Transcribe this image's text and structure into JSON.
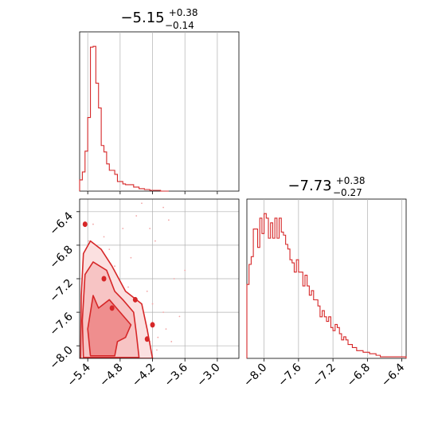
{
  "chart_data": [
    {
      "type": "histogram",
      "panel": "param-1-marginal",
      "title": {
        "median": "−5.15",
        "upper": "+0.38",
        "lower": "−0.14"
      },
      "xlim": [
        -5.55,
        -2.6
      ],
      "xticks": [
        -5.4,
        -4.8,
        -4.2,
        -3.6,
        -3.0
      ],
      "grid": true,
      "bin_edges": [
        -5.55,
        -5.5,
        -5.45,
        -5.4,
        -5.35,
        -5.3,
        -5.25,
        -5.2,
        -5.15,
        -5.1,
        -5.05,
        -5.0,
        -4.95,
        -4.9,
        -4.85,
        -4.8,
        -4.75,
        -4.7,
        -4.65,
        -4.6,
        -4.55,
        -4.5,
        -4.45,
        -4.4,
        -4.35,
        -4.3,
        -4.25,
        -4.2,
        -4.15,
        -4.1,
        -4.05,
        -4.0,
        -3.95,
        -3.9
      ],
      "counts": [
        14,
        24,
        50,
        92,
        180,
        181,
        135,
        104,
        57,
        49,
        34,
        26,
        26,
        21,
        12,
        12,
        9,
        8,
        8,
        8,
        5,
        5,
        3,
        3,
        2,
        2,
        1,
        1,
        1,
        1,
        0,
        0,
        0
      ]
    },
    {
      "type": "histogram",
      "panel": "param-2-marginal",
      "title": {
        "median": "−7.73",
        "upper": "+0.38",
        "lower": "−0.27"
      },
      "xlim": [
        -8.2,
        -6.35
      ],
      "xticks": [
        -8.0,
        -7.6,
        -7.2,
        -6.8,
        -6.4
      ],
      "grid": true,
      "bin_edges": [
        -8.2,
        -8.175,
        -8.15,
        -8.125,
        -8.1,
        -8.075,
        -8.05,
        -8.025,
        -8.0,
        -7.975,
        -7.95,
        -7.925,
        -7.9,
        -7.875,
        -7.85,
        -7.825,
        -7.8,
        -7.775,
        -7.75,
        -7.725,
        -7.7,
        -7.675,
        -7.65,
        -7.625,
        -7.6,
        -7.575,
        -7.55,
        -7.525,
        -7.5,
        -7.475,
        -7.45,
        -7.425,
        -7.4,
        -7.375,
        -7.35,
        -7.325,
        -7.3,
        -7.275,
        -7.25,
        -7.225,
        -7.2,
        -7.175,
        -7.15,
        -7.125,
        -7.1,
        -7.075,
        -7.05,
        -7.025,
        -7.0,
        -6.975,
        -6.95,
        -6.925,
        -6.9,
        -6.875,
        -6.85,
        -6.825,
        -6.8,
        -6.775,
        -6.75,
        -6.725,
        -6.7,
        -6.675,
        -6.65,
        -6.625,
        -6.6,
        -6.575,
        -6.55,
        -6.525,
        -6.5,
        -6.475,
        -6.45,
        -6.425,
        -6.4,
        -6.375,
        -6.35
      ],
      "counts": [
        48,
        61,
        66,
        84,
        84,
        72,
        91,
        81,
        94,
        91,
        78,
        88,
        78,
        91,
        78,
        91,
        82,
        80,
        74,
        71,
        64,
        62,
        56,
        64,
        56,
        56,
        47,
        54,
        47,
        41,
        44,
        38,
        38,
        34,
        27,
        31,
        27,
        24,
        27,
        20,
        18,
        22,
        20,
        16,
        12,
        14,
        12,
        9,
        9,
        7,
        7,
        5,
        5,
        5,
        4,
        4,
        4,
        3,
        3,
        3,
        2,
        2,
        1,
        1,
        1,
        1,
        1,
        1,
        1,
        1,
        1,
        1,
        1,
        1
      ]
    },
    {
      "type": "contour",
      "panel": "joint-2d",
      "xlim": [
        -5.55,
        -2.6
      ],
      "ylim": [
        -8.15,
        -6.25
      ],
      "xticks": [
        -5.4,
        -4.8,
        -4.2,
        -3.6,
        -3.0
      ],
      "yticks": [
        -6.4,
        -6.8,
        -7.2,
        -7.6,
        -8.0
      ],
      "grid": true,
      "points": [
        [
          -5.4,
          -7.4
        ],
        [
          -5.35,
          -7.7
        ],
        [
          -5.3,
          -7.9
        ],
        [
          -5.2,
          -7.5
        ],
        [
          -5.15,
          -7.6
        ],
        [
          -5.1,
          -7.8
        ],
        [
          -5.05,
          -7.3
        ],
        [
          -5.0,
          -7.95
        ],
        [
          -4.95,
          -7.65
        ],
        [
          -4.9,
          -7.85
        ],
        [
          -4.85,
          -7.5
        ],
        [
          -4.8,
          -7.7
        ],
        [
          -4.7,
          -7.9
        ],
        [
          -4.6,
          -7.8
        ],
        [
          -4.5,
          -7.6
        ],
        [
          -4.45,
          -7.95
        ],
        [
          -4.35,
          -7.7
        ],
        [
          -4.3,
          -7.35
        ],
        [
          -4.2,
          -7.5
        ],
        [
          -4.1,
          -7.9
        ],
        [
          -4.0,
          -7.6
        ],
        [
          -3.95,
          -7.8
        ],
        [
          -3.8,
          -7.2
        ],
        [
          -3.7,
          -7.65
        ],
        [
          -5.45,
          -6.95
        ],
        [
          -5.38,
          -6.75
        ],
        [
          -5.3,
          -6.55
        ],
        [
          -5.22,
          -6.9
        ],
        [
          -5.1,
          -6.7
        ],
        [
          -5.0,
          -6.85
        ],
        [
          -4.9,
          -7.05
        ],
        [
          -4.75,
          -6.6
        ],
        [
          -4.6,
          -6.95
        ],
        [
          -4.5,
          -6.45
        ],
        [
          -4.4,
          -6.3
        ],
        [
          -4.25,
          -6.6
        ],
        [
          -4.15,
          -6.75
        ],
        [
          -4.0,
          -6.35
        ],
        [
          -3.9,
          -6.5
        ],
        [
          -3.6,
          -7.1
        ],
        [
          -5.25,
          -7.35
        ],
        [
          -5.2,
          -7.1
        ],
        [
          -5.12,
          -7.45
        ],
        [
          -5.05,
          -7.2
        ],
        [
          -4.98,
          -7.55
        ],
        [
          -4.88,
          -7.25
        ],
        [
          -4.82,
          -7.4
        ],
        [
          -4.72,
          -7.55
        ],
        [
          -4.65,
          -7.3
        ],
        [
          -4.55,
          -7.45
        ],
        [
          -5.42,
          -7.85
        ],
        [
          -5.36,
          -8.05
        ],
        [
          -5.28,
          -7.65
        ],
        [
          -5.18,
          -7.95
        ],
        [
          -5.08,
          -8.05
        ],
        [
          -4.92,
          -8.02
        ],
        [
          -4.78,
          -7.98
        ],
        [
          -4.62,
          -8.05
        ],
        [
          -4.42,
          -8.0
        ],
        [
          -4.25,
          -7.95
        ],
        [
          -4.12,
          -8.05
        ],
        [
          -3.85,
          -7.95
        ]
      ],
      "levels": [
        {
          "fill": "#ef8e8e",
          "path": [
            [
              -5.35,
              -8.12
            ],
            [
              -4.9,
              -8.12
            ],
            [
              -4.85,
              -7.95
            ],
            [
              -4.7,
              -7.9
            ],
            [
              -4.6,
              -7.75
            ],
            [
              -4.8,
              -7.6
            ],
            [
              -5.0,
              -7.45
            ],
            [
              -5.2,
              -7.55
            ],
            [
              -5.3,
              -7.4
            ],
            [
              -5.4,
              -7.8
            ]
          ]
        },
        {
          "fill": "#f7c4c4",
          "path": [
            [
              -5.48,
              -8.14
            ],
            [
              -4.45,
              -8.14
            ],
            [
              -4.5,
              -7.85
            ],
            [
              -4.55,
              -7.6
            ],
            [
              -4.75,
              -7.45
            ],
            [
              -4.9,
              -7.35
            ],
            [
              -5.05,
              -7.1
            ],
            [
              -5.3,
              -7.0
            ],
            [
              -5.45,
              -7.15
            ],
            [
              -5.5,
              -7.7
            ]
          ]
        },
        {
          "fill": "#fbe0e0",
          "path": [
            [
              -5.53,
              -8.15
            ],
            [
              -4.2,
              -8.15
            ],
            [
              -4.3,
              -7.8
            ],
            [
              -4.4,
              -7.5
            ],
            [
              -4.7,
              -7.35
            ],
            [
              -4.95,
              -7.05
            ],
            [
              -5.15,
              -6.85
            ],
            [
              -5.35,
              -6.75
            ],
            [
              -5.48,
              -6.9
            ],
            [
              -5.52,
              -7.4
            ]
          ]
        }
      ],
      "islands": [
        [
          -5.45,
          -6.55
        ],
        [
          -5.1,
          -7.2
        ],
        [
          -4.52,
          -7.45
        ],
        [
          -4.95,
          -7.55
        ],
        [
          -4.2,
          -7.75
        ],
        [
          -4.3,
          -7.92
        ]
      ]
    }
  ]
}
